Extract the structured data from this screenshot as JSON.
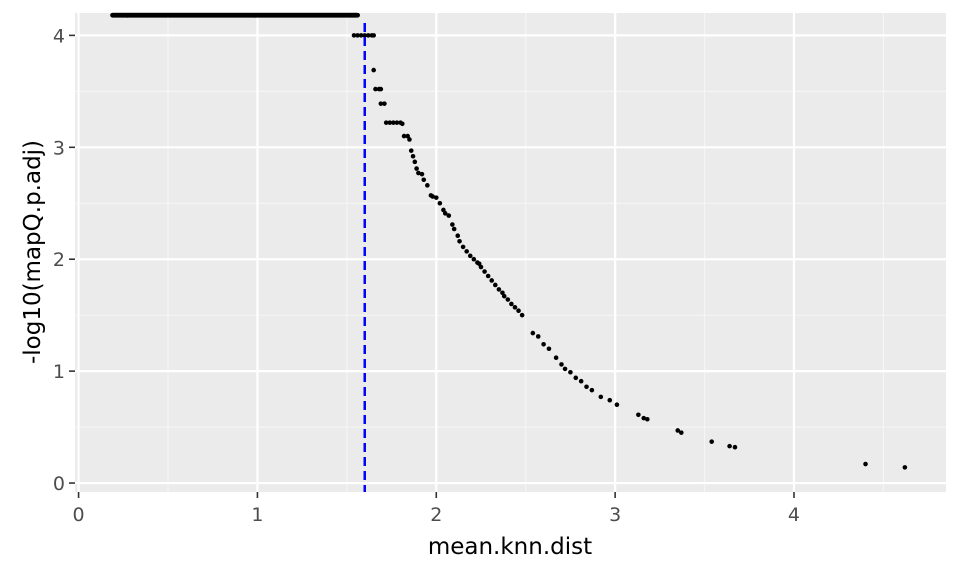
{
  "chart_data": {
    "type": "scatter",
    "title": "",
    "xlabel": "mean.knn.dist",
    "ylabel": "-log10(mapQ.p.adj)",
    "xlim": [
      -0.02,
      4.85
    ],
    "ylim": [
      -0.08,
      4.2
    ],
    "x_ticks": [
      0,
      1,
      2,
      3,
      4
    ],
    "x_tick_labels": [
      "0",
      "1",
      "2",
      "3",
      "4"
    ],
    "y_ticks": [
      0,
      1,
      2,
      3,
      4
    ],
    "y_tick_labels": [
      "0",
      "1",
      "2",
      "3",
      "4"
    ],
    "grid": true,
    "legend": "none",
    "colors": {
      "panel": "#ebebeb",
      "grid_major": "#ffffff",
      "grid_minor": "#f5f5f5",
      "points": "#000000",
      "threshold_line": "#0000ff"
    },
    "threshold": {
      "x": 1.6,
      "style": "dashed"
    },
    "point_groups": [
      {
        "note": "dense run of points clipped at top of panel",
        "x_from": 0.19,
        "x_to": 1.56,
        "y": 4.18
      }
    ],
    "points": [
      [
        1.54,
        4.0
      ],
      [
        1.56,
        4.0
      ],
      [
        1.58,
        4.0
      ],
      [
        1.6,
        4.0
      ],
      [
        1.62,
        4.0
      ],
      [
        1.64,
        4.0
      ],
      [
        1.65,
        4.0
      ],
      [
        1.65,
        3.69
      ],
      [
        1.66,
        3.52
      ],
      [
        1.68,
        3.52
      ],
      [
        1.69,
        3.52
      ],
      [
        1.69,
        3.39
      ],
      [
        1.71,
        3.39
      ],
      [
        1.72,
        3.22
      ],
      [
        1.74,
        3.22
      ],
      [
        1.76,
        3.22
      ],
      [
        1.78,
        3.22
      ],
      [
        1.8,
        3.22
      ],
      [
        1.81,
        3.21
      ],
      [
        1.82,
        3.1
      ],
      [
        1.84,
        3.1
      ],
      [
        1.85,
        3.07
      ],
      [
        1.86,
        2.97
      ],
      [
        1.87,
        2.92
      ],
      [
        1.88,
        2.87
      ],
      [
        1.89,
        2.81
      ],
      [
        1.9,
        2.77
      ],
      [
        1.92,
        2.76
      ],
      [
        1.93,
        2.71
      ],
      [
        1.95,
        2.66
      ],
      [
        1.97,
        2.57
      ],
      [
        1.98,
        2.56
      ],
      [
        2.0,
        2.55
      ],
      [
        2.02,
        2.5
      ],
      [
        2.04,
        2.44
      ],
      [
        2.05,
        2.41
      ],
      [
        2.07,
        2.39
      ],
      [
        2.09,
        2.31
      ],
      [
        2.1,
        2.27
      ],
      [
        2.12,
        2.21
      ],
      [
        2.13,
        2.16
      ],
      [
        2.15,
        2.11
      ],
      [
        2.17,
        2.07
      ],
      [
        2.19,
        2.03
      ],
      [
        2.21,
        2.0
      ],
      [
        2.23,
        1.97
      ],
      [
        2.24,
        1.96
      ],
      [
        2.25,
        1.93
      ],
      [
        2.27,
        1.89
      ],
      [
        2.29,
        1.85
      ],
      [
        2.31,
        1.81
      ],
      [
        2.33,
        1.77
      ],
      [
        2.35,
        1.73
      ],
      [
        2.37,
        1.7
      ],
      [
        2.38,
        1.67
      ],
      [
        2.4,
        1.64
      ],
      [
        2.42,
        1.6
      ],
      [
        2.44,
        1.57
      ],
      [
        2.46,
        1.54
      ],
      [
        2.48,
        1.5
      ],
      [
        2.54,
        1.34
      ],
      [
        2.57,
        1.31
      ],
      [
        2.6,
        1.24
      ],
      [
        2.63,
        1.2
      ],
      [
        2.67,
        1.12
      ],
      [
        2.7,
        1.06
      ],
      [
        2.72,
        1.02
      ],
      [
        2.75,
        0.99
      ],
      [
        2.78,
        0.94
      ],
      [
        2.81,
        0.91
      ],
      [
        2.84,
        0.86
      ],
      [
        2.87,
        0.83
      ],
      [
        2.92,
        0.77
      ],
      [
        2.97,
        0.74
      ],
      [
        3.01,
        0.7
      ],
      [
        3.13,
        0.61
      ],
      [
        3.16,
        0.58
      ],
      [
        3.18,
        0.57
      ],
      [
        3.35,
        0.47
      ],
      [
        3.37,
        0.45
      ],
      [
        3.54,
        0.37
      ],
      [
        3.64,
        0.33
      ],
      [
        3.67,
        0.32
      ],
      [
        4.4,
        0.17
      ],
      [
        4.62,
        0.14
      ]
    ]
  }
}
